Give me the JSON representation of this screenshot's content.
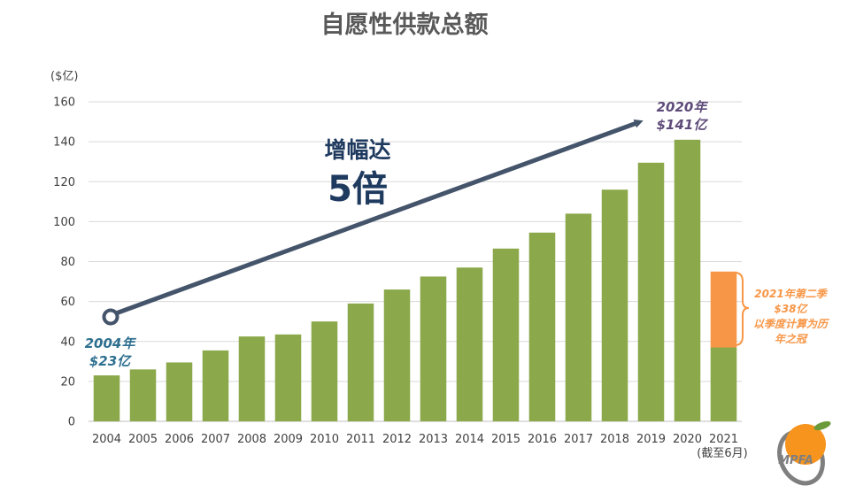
{
  "chart_data": {
    "type": "bar",
    "title": "自愿性供款总额",
    "unit_label": "($亿)",
    "ylim": [
      0,
      160
    ],
    "yticks": [
      0,
      20,
      40,
      60,
      80,
      100,
      120,
      140,
      160
    ],
    "grid": true,
    "categories": [
      "2004",
      "2005",
      "2006",
      "2007",
      "2008",
      "2009",
      "2010",
      "2011",
      "2012",
      "2013",
      "2014",
      "2015",
      "2016",
      "2017",
      "2018",
      "2019",
      "2020",
      "2021"
    ],
    "last_category_note": "(截至6月)",
    "series": [
      {
        "color": "#8BA84A",
        "values": [
          23,
          26,
          29.5,
          35.5,
          42.5,
          43.5,
          50,
          59,
          66,
          72.5,
          77,
          86.5,
          94.5,
          104,
          116,
          129.5,
          141,
          37
        ]
      },
      {
        "color": "#F79646",
        "values": [
          0,
          0,
          0,
          0,
          0,
          0,
          0,
          0,
          0,
          0,
          0,
          0,
          0,
          0,
          0,
          0,
          0,
          38
        ]
      }
    ],
    "annotations": {
      "start_line1": "2004年",
      "start_line2": "$23亿",
      "end_line1": "2020年",
      "end_line2": "$141亿",
      "growth_line1": "增幅达",
      "growth_line2": "5倍",
      "q2_line1": "2021年第二季",
      "q2_line2": "$38亿",
      "q2_line3": "以季度计算为历",
      "q2_line4": "年之冠"
    }
  },
  "logo": {
    "text": "MPFA",
    "colors": {
      "orange": "#F7941D",
      "grey": "#7F7F7F",
      "green": "#6A9A3A"
    }
  }
}
